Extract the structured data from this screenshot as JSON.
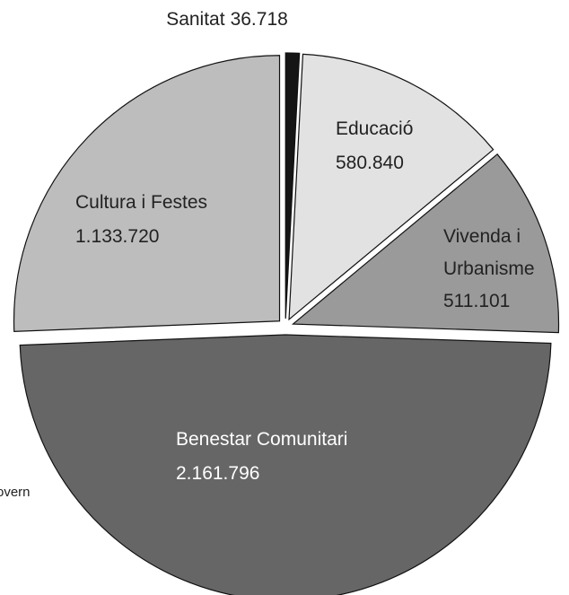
{
  "chart_data": {
    "type": "pie",
    "categories": [
      "Sanitat",
      "Educació",
      "Vivenda i Urbanisme",
      "Benestar Comunitari",
      "Cultura i Festes"
    ],
    "values": [
      36718,
      580840,
      511101,
      2161796,
      1133720
    ],
    "value_labels": [
      "36.718",
      "580.840",
      "511.101",
      "2.161.796",
      "1.133.720"
    ],
    "colors": [
      "#151515",
      "#e2e2e2",
      "#9a9a9a",
      "#666666",
      "#bdbdbd"
    ],
    "annotations": [
      "overn"
    ]
  }
}
